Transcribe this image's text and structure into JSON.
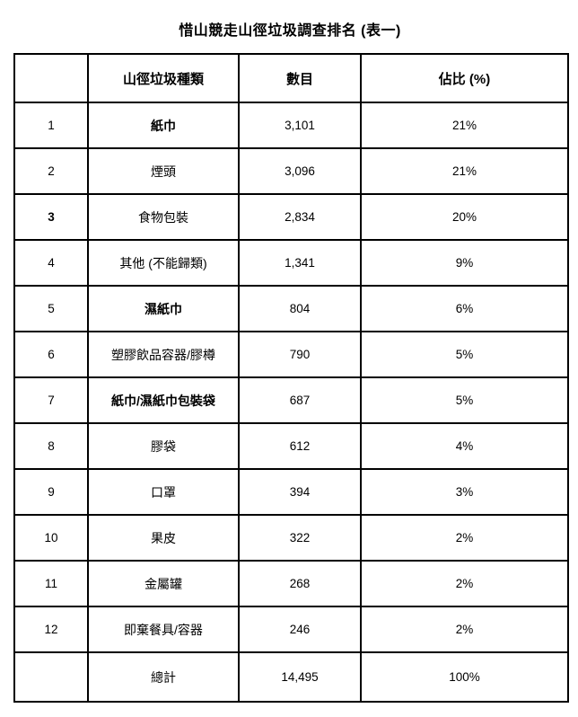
{
  "title": "惜山競走山徑垃圾調查排名 (表一)",
  "table": {
    "headers": {
      "rank": "",
      "type": "山徑垃圾種類",
      "count": "數目",
      "percent": "佔比 (%)"
    },
    "rows": [
      {
        "rank": "1",
        "type": "紙巾",
        "count": "3,101",
        "percent": "21%",
        "rank_bold": false,
        "type_bold": true
      },
      {
        "rank": "2",
        "type": "煙頭",
        "count": "3,096",
        "percent": "21%",
        "rank_bold": false,
        "type_bold": false
      },
      {
        "rank": "3",
        "type": "食物包裝",
        "count": "2,834",
        "percent": "20%",
        "rank_bold": true,
        "type_bold": false
      },
      {
        "rank": "4",
        "type": "其他 (不能歸類)",
        "count": "1,341",
        "percent": "9%",
        "rank_bold": false,
        "type_bold": false
      },
      {
        "rank": "5",
        "type": "濕紙巾",
        "count": "804",
        "percent": "6%",
        "rank_bold": false,
        "type_bold": true
      },
      {
        "rank": "6",
        "type": "塑膠飲品容器/膠樽",
        "count": "790",
        "percent": "5%",
        "rank_bold": false,
        "type_bold": false
      },
      {
        "rank": "7",
        "type": "紙巾/濕紙巾包裝袋",
        "count": "687",
        "percent": "5%",
        "rank_bold": false,
        "type_bold": true
      },
      {
        "rank": "8",
        "type": "膠袋",
        "count": "612",
        "percent": "4%",
        "rank_bold": false,
        "type_bold": false
      },
      {
        "rank": "9",
        "type": "口罩",
        "count": "394",
        "percent": "3%",
        "rank_bold": false,
        "type_bold": false
      },
      {
        "rank": "10",
        "type": "果皮",
        "count": "322",
        "percent": "2%",
        "rank_bold": false,
        "type_bold": false
      },
      {
        "rank": "11",
        "type": "金屬罐",
        "count": "268",
        "percent": "2%",
        "rank_bold": false,
        "type_bold": false
      },
      {
        "rank": "12",
        "type": "即棄餐具/容器",
        "count": "246",
        "percent": "2%",
        "rank_bold": false,
        "type_bold": false
      }
    ],
    "total_row": {
      "rank": "",
      "type": "總計",
      "count": "14,495",
      "percent": "100%"
    }
  },
  "colors": {
    "text": "#000000",
    "border": "#000000",
    "background": "#ffffff"
  }
}
